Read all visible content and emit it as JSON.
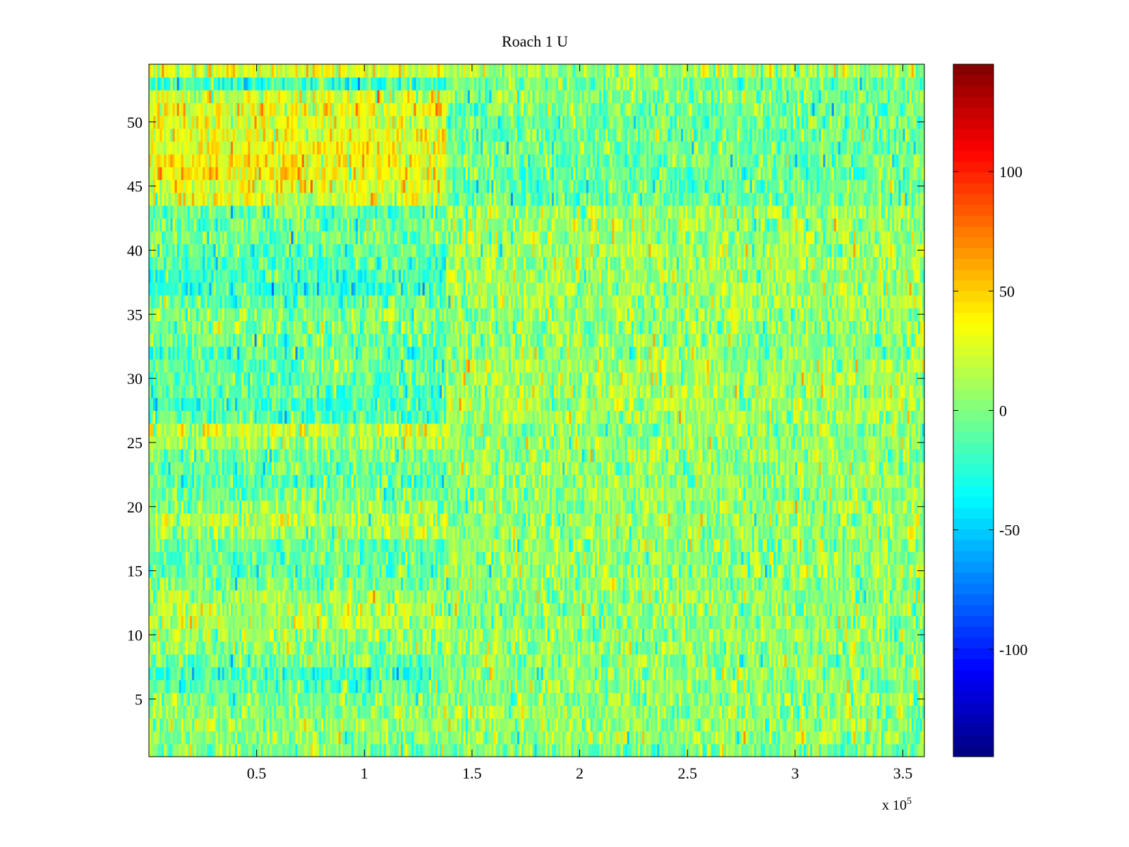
{
  "chart_data": {
    "type": "heatmap",
    "title": "Roach 1 U",
    "xlabel": "",
    "ylabel": "",
    "x_exponent_label": {
      "base": "x 10",
      "exp": "5"
    },
    "xlim": [
      0,
      360000
    ],
    "ylim": [
      0.5,
      54.5
    ],
    "x_ticks": [
      50000,
      100000,
      150000,
      200000,
      250000,
      300000,
      350000
    ],
    "x_tick_labels": [
      "0.5",
      "1",
      "1.5",
      "2",
      "2.5",
      "3",
      "3.5"
    ],
    "y_ticks": [
      5,
      10,
      15,
      20,
      25,
      30,
      35,
      40,
      45,
      50
    ],
    "y_tick_labels": [
      "5",
      "10",
      "15",
      "20",
      "25",
      "30",
      "35",
      "40",
      "45",
      "50"
    ],
    "rows": 54,
    "x_columns": 360,
    "x_breakpoint": 138000,
    "colormap": "jet",
    "clim": [
      -145,
      145
    ],
    "colorbar": {
      "ticks": [
        -100,
        -50,
        0,
        50,
        100
      ],
      "tick_labels": [
        "-100",
        "-50",
        "0",
        "50",
        "100"
      ]
    },
    "row_means_before_breakpoint": [
      0,
      5,
      10,
      5,
      0,
      -10,
      -18,
      -5,
      5,
      10,
      15,
      15,
      10,
      0,
      -8,
      -12,
      -8,
      10,
      15,
      5,
      -5,
      -10,
      -8,
      -5,
      10,
      20,
      -12,
      -15,
      -12,
      -10,
      -8,
      -10,
      -5,
      -3,
      0,
      -10,
      -22,
      -18,
      -15,
      -10,
      -5,
      -5,
      -10,
      25,
      30,
      35,
      38,
      32,
      30,
      28,
      28,
      25,
      -20,
      30
    ],
    "row_means_after_breakpoint": [
      0,
      5,
      5,
      5,
      5,
      5,
      5,
      5,
      5,
      5,
      5,
      5,
      5,
      5,
      5,
      5,
      5,
      5,
      5,
      5,
      5,
      5,
      5,
      5,
      5,
      5,
      10,
      10,
      10,
      10,
      10,
      5,
      5,
      5,
      5,
      10,
      10,
      10,
      8,
      8,
      8,
      8,
      8,
      -5,
      -8,
      -5,
      -5,
      -5,
      -5,
      -5,
      -5,
      0,
      -5,
      10
    ],
    "noise_std": 18,
    "grid": false,
    "legend": "none"
  }
}
